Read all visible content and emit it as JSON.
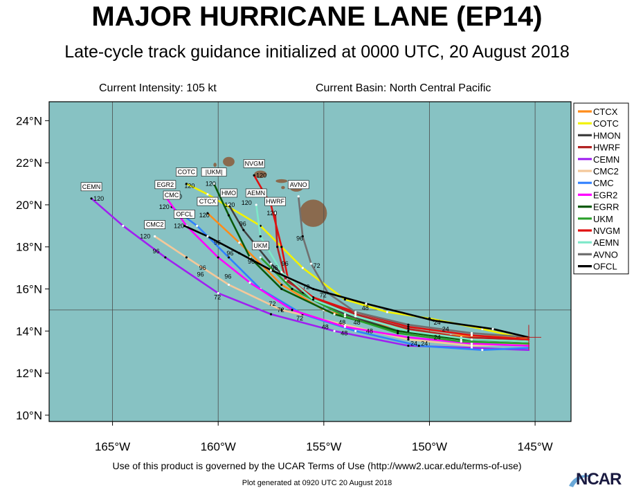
{
  "header": {
    "title": "MAJOR HURRICANE LANE (EP14)",
    "subtitle": "Late-cycle track guidance initialized at 0000 UTC, 20 August 2018",
    "current_intensity": "Current Intensity: 105 kt",
    "current_basin": "Current Basin: North Central Pacific"
  },
  "footer": {
    "terms": "Use of this product is governed by the UCAR Terms of Use (http://www2.ucar.edu/terms-of-use)",
    "generated": "Plot generated at 0920 UTC   20 August 2018",
    "logo_text": "NCAR"
  },
  "map": {
    "ocean_color": "#87c2c3",
    "land_color": "#8a6a4e",
    "lon_range": [
      -168,
      -143.3
    ],
    "lat_range": [
      9.7,
      24.9
    ],
    "lon_ticks": [
      -165,
      -160,
      -155,
      -150,
      -145
    ],
    "lon_tick_labels": [
      "165°W",
      "160°W",
      "155°W",
      "150°W",
      "145°W"
    ],
    "lat_ticks": [
      10,
      12,
      14,
      16,
      18,
      20,
      22,
      24
    ],
    "lat_tick_labels": [
      "10°N",
      "12°N",
      "14°N",
      "16°N",
      "18°N",
      "20°N",
      "22°N",
      "24°N"
    ],
    "gridlines": {
      "lon": [
        -165,
        -160,
        -155,
        -150,
        -145
      ],
      "lat": [
        15
      ]
    },
    "current_position": {
      "lon": -145.3,
      "lat": 13.7
    }
  },
  "chart_data": {
    "type": "track-map",
    "title": "MAJOR HURRICANE LANE (EP14)",
    "legend_placement": "right",
    "series": [
      {
        "name": "CTCX",
        "color": "#ff8c1a",
        "label": "CTCX",
        "lon": [
          -145.3,
          -149.0,
          -153.0,
          -155.0,
          -157.0,
          -159.0,
          -160.5
        ],
        "lat": [
          13.7,
          13.8,
          14.4,
          15.0,
          16.2,
          18.2,
          19.6
        ]
      },
      {
        "name": "COTC",
        "color": "#f2f200",
        "label": "COTC",
        "lon": [
          -145.3,
          -147.5,
          -150.0,
          -152.0,
          -154.0,
          -156.0,
          -158.0,
          -160.5,
          -161.5
        ],
        "lat": [
          13.6,
          14.1,
          14.6,
          14.9,
          15.5,
          17.0,
          19.0,
          20.5,
          21.0
        ]
      },
      {
        "name": "HMON",
        "color": "#404040",
        "label": "HMO",
        "lon": [
          -145.3,
          -148.5,
          -151.5,
          -154.0,
          -156.0,
          -157.5,
          -158.8,
          -159.5
        ],
        "lat": [
          13.5,
          13.6,
          14.0,
          14.8,
          15.8,
          17.2,
          18.8,
          20.0
        ]
      },
      {
        "name": "HWRF",
        "color": "#b22222",
        "label": "HWRF",
        "lon": [
          -145.3,
          -148.5,
          -151.0,
          -153.5,
          -155.5,
          -156.8,
          -157.2,
          -157.3
        ],
        "lat": [
          13.6,
          13.7,
          14.1,
          14.8,
          15.6,
          16.4,
          18.0,
          19.6
        ]
      },
      {
        "name": "CEMN",
        "color": "#a020f0",
        "label": "CEMN",
        "lon": [
          -145.3,
          -148.0,
          -151.0,
          -154.5,
          -157.5,
          -160.0,
          -162.5,
          -164.5,
          -166.0
        ],
        "lat": [
          13.1,
          13.2,
          13.3,
          14.0,
          14.8,
          15.8,
          17.5,
          19.0,
          20.3
        ]
      },
      {
        "name": "CMC2",
        "color": "#f4c89a",
        "label": "CMC2",
        "lon": [
          -145.3,
          -148.0,
          -151.0,
          -154.0,
          -157.0,
          -159.5,
          -161.5,
          -163.0
        ],
        "lat": [
          13.4,
          13.3,
          13.6,
          14.3,
          15.0,
          16.2,
          17.5,
          18.5
        ]
      },
      {
        "name": "CMC",
        "color": "#3080ff",
        "label": "CMC",
        "lon": [
          -145.3,
          -147.5,
          -150.5,
          -153.5,
          -156.0,
          -158.0,
          -159.5,
          -161.0,
          -162.2
        ],
        "lat": [
          13.2,
          13.1,
          13.3,
          14.0,
          14.8,
          16.0,
          17.5,
          19.0,
          19.9
        ]
      },
      {
        "name": "EGR2",
        "color": "#ff00ff",
        "label": "EGR2",
        "lon": [
          -145.3,
          -148.0,
          -151.0,
          -154.0,
          -156.5,
          -158.5,
          -160.0,
          -161.5,
          -162.5
        ],
        "lat": [
          13.3,
          13.4,
          13.7,
          14.2,
          15.0,
          16.3,
          17.5,
          19.0,
          20.4
        ]
      },
      {
        "name": "EGRR",
        "color": "#0a5a0a",
        "label": "|UKM|",
        "lon": [
          -145.3,
          -148.5,
          -151.5,
          -154.5,
          -157.0,
          -158.5,
          -159.5,
          -160.2
        ],
        "lat": [
          13.5,
          13.6,
          14.0,
          14.8,
          16.0,
          17.5,
          19.5,
          21.0
        ]
      },
      {
        "name": "UKM",
        "color": "#2aa02a",
        "label": "UKM",
        "lon": [
          -145.3,
          -148.5,
          -151.5,
          -154.0,
          -156.5,
          -158.0
        ],
        "lat": [
          13.4,
          13.5,
          13.9,
          14.7,
          16.0,
          17.5
        ]
      },
      {
        "name": "NVGM",
        "color": "#e01010",
        "label": "NVGM",
        "lon": [
          -145.3,
          -148.0,
          -151.0,
          -153.5,
          -155.5,
          -156.7,
          -157.0,
          -157.5,
          -158.3
        ],
        "lat": [
          13.6,
          13.8,
          14.2,
          14.9,
          15.6,
          16.5,
          18.0,
          20.0,
          21.4
        ]
      },
      {
        "name": "AEMN",
        "color": "#7de8c8",
        "label": "AEMN",
        "lon": [
          -145.3,
          -148.0,
          -151.0,
          -153.5,
          -155.5,
          -157.0,
          -158.0,
          -158.2
        ],
        "lat": [
          13.5,
          13.6,
          14.0,
          14.7,
          15.5,
          16.8,
          18.5,
          20.0
        ]
      },
      {
        "name": "AVNO",
        "color": "#707070",
        "label": "AVNO",
        "lon": [
          -145.3,
          -148.0,
          -151.0,
          -153.5,
          -154.8,
          -155.6,
          -156.0,
          -156.2
        ],
        "lat": [
          13.7,
          13.9,
          14.3,
          14.9,
          15.8,
          17.2,
          18.5,
          20.4
        ]
      },
      {
        "name": "OFCL",
        "color": "#000000",
        "label": "OFCL",
        "lon": [
          -145.3,
          -147.0,
          -149.8,
          -153.0,
          -155.5,
          -157.5,
          -159.0,
          -160.5,
          -161.6
        ],
        "lat": [
          13.7,
          14.1,
          14.5,
          15.3,
          16.0,
          16.9,
          17.7,
          18.5,
          19.0
        ]
      }
    ],
    "hour_labels": [
      {
        "text": "120",
        "lon": -165.9,
        "lat": 20.2
      },
      {
        "text": "120",
        "lon": -162.8,
        "lat": 19.8
      },
      {
        "text": "120",
        "lon": -162.2,
        "lat": 20.3
      },
      {
        "text": "120",
        "lon": -161.6,
        "lat": 20.8
      },
      {
        "text": "120",
        "lon": -160.6,
        "lat": 20.9
      },
      {
        "text": "120",
        "lon": -162.1,
        "lat": 18.9
      },
      {
        "text": "120",
        "lon": -163.7,
        "lat": 18.4
      },
      {
        "text": "120",
        "lon": -160.9,
        "lat": 19.4
      },
      {
        "text": "120",
        "lon": -159.7,
        "lat": 19.9
      },
      {
        "text": "120",
        "lon": -158.9,
        "lat": 20.0
      },
      {
        "text": "120",
        "lon": -158.2,
        "lat": 21.3
      },
      {
        "text": "120",
        "lon": -157.7,
        "lat": 19.5
      },
      {
        "text": "96",
        "lon": -163.1,
        "lat": 17.7
      },
      {
        "text": "96",
        "lon": -160.9,
        "lat": 16.9
      },
      {
        "text": "96",
        "lon": -161.0,
        "lat": 16.6
      },
      {
        "text": "96",
        "lon": -160.2,
        "lat": 18.1
      },
      {
        "text": "96",
        "lon": -159.6,
        "lat": 17.6
      },
      {
        "text": "96",
        "lon": -159.7,
        "lat": 16.5
      },
      {
        "text": "96",
        "lon": -159.0,
        "lat": 19.0
      },
      {
        "text": "96",
        "lon": -158.6,
        "lat": 17.2
      },
      {
        "text": "96",
        "lon": -157.9,
        "lat": 17.9
      },
      {
        "text": "96",
        "lon": -157.5,
        "lat": 16.9
      },
      {
        "text": "96",
        "lon": -157.0,
        "lat": 17.1
      },
      {
        "text": "96",
        "lon": -156.3,
        "lat": 18.3
      },
      {
        "text": "72",
        "lon": -160.2,
        "lat": 15.5
      },
      {
        "text": "72",
        "lon": -157.6,
        "lat": 15.2
      },
      {
        "text": "72",
        "lon": -157.2,
        "lat": 14.9
      },
      {
        "text": "72",
        "lon": -156.3,
        "lat": 14.5
      },
      {
        "text": "72",
        "lon": -156.0,
        "lat": 16.0
      },
      {
        "text": "72",
        "lon": -155.2,
        "lat": 15.6
      },
      {
        "text": "72",
        "lon": -155.5,
        "lat": 17.0
      },
      {
        "text": "48",
        "lon": -155.1,
        "lat": 14.1
      },
      {
        "text": "48",
        "lon": -154.3,
        "lat": 14.3
      },
      {
        "text": "48",
        "lon": -154.2,
        "lat": 13.8
      },
      {
        "text": "48",
        "lon": -153.6,
        "lat": 14.3
      },
      {
        "text": "48",
        "lon": -153.2,
        "lat": 15.0
      },
      {
        "text": "48",
        "lon": -153.0,
        "lat": 13.9
      },
      {
        "text": "24",
        "lon": -150.9,
        "lat": 13.3
      },
      {
        "text": "24",
        "lon": -150.4,
        "lat": 13.3
      },
      {
        "text": "24",
        "lon": -149.8,
        "lat": 14.3
      },
      {
        "text": "24",
        "lon": -149.8,
        "lat": 13.6
      },
      {
        "text": "24",
        "lon": -149.4,
        "lat": 14.0
      }
    ]
  },
  "islands": [
    {
      "name": "Kauai",
      "lon": -159.5,
      "lat": 22.05,
      "w": 0.55,
      "h": 0.45
    },
    {
      "name": "Oahu",
      "lon": -158.0,
      "lat": 21.45,
      "w": 0.6,
      "h": 0.35
    },
    {
      "name": "Molokai",
      "lon": -157.0,
      "lat": 21.13,
      "w": 0.55,
      "h": 0.18
    },
    {
      "name": "Maui",
      "lon": -156.3,
      "lat": 20.8,
      "w": 0.6,
      "h": 0.35
    },
    {
      "name": "Lanai",
      "lon": -156.93,
      "lat": 20.82,
      "w": 0.18,
      "h": 0.15
    },
    {
      "name": "Niihau",
      "lon": -160.15,
      "lat": 21.9,
      "w": 0.15,
      "h": 0.2
    },
    {
      "name": "Hawaii",
      "lon": -155.5,
      "lat": 19.6,
      "w": 1.3,
      "h": 1.3
    }
  ]
}
